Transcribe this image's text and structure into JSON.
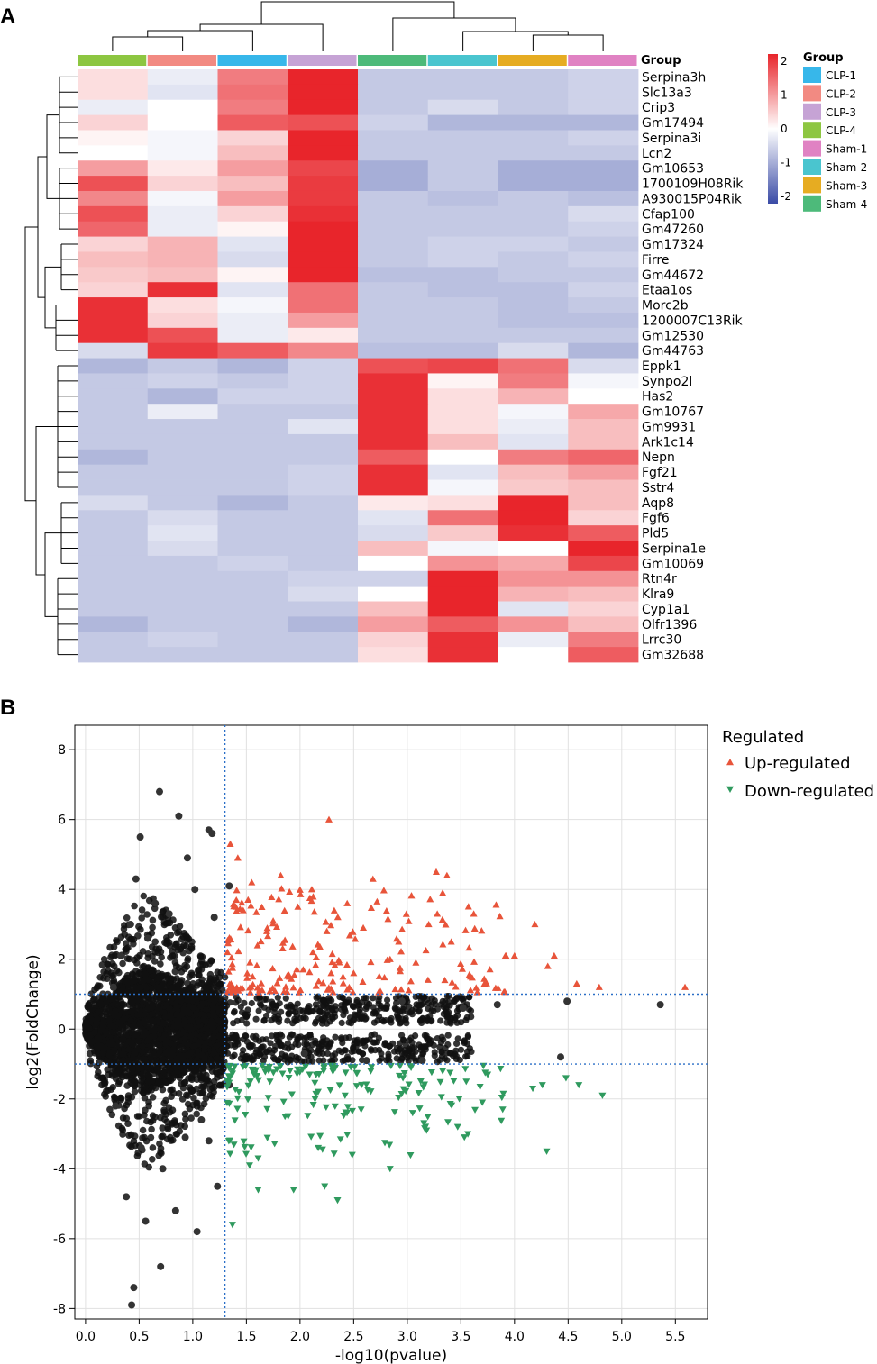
{
  "figure": {
    "panel_a_letter": "A",
    "panel_b_letter": "B"
  },
  "chart_data": [
    {
      "type": "heatmap",
      "group_annotation_label": "Group",
      "columns": [
        "CLP-4",
        "CLP-2",
        "CLP-1",
        "CLP-3",
        "Sham-4",
        "Sham-2",
        "Sham-3",
        "Sham-1"
      ],
      "rows": [
        "Serpina3h",
        "Slc13a3",
        "Crip3",
        "Gm17494",
        "Serpina3i",
        "Lcn2",
        "Gm10653",
        "1700109H08Rik",
        "A930015P04Rik",
        "Cfap100",
        "Gm47260",
        "Gm17324",
        "Firre",
        "Gm44672",
        "Etaa1os",
        "Morc2b",
        "1200007C13Rik",
        "Gm12530",
        "Gm44763",
        "Eppk1",
        "Synpo2l",
        "Has2",
        "Gm10767",
        "Gm9931",
        "Ark1c14",
        "Nepn",
        "Fgf21",
        "Sstr4",
        "Aqp8",
        "Fgf6",
        "Pld5",
        "Serpina1e",
        "Gm10069",
        "Rtn4r",
        "Klra9",
        "Cyp1a1",
        "Olfr1396",
        "Lrrc30",
        "Gm32688"
      ],
      "values": [
        [
          0.3,
          -0.2,
          1.2,
          2.0,
          -0.6,
          -0.6,
          -0.6,
          -0.5
        ],
        [
          0.3,
          -0.3,
          1.3,
          2.0,
          -0.6,
          -0.6,
          -0.6,
          -0.5
        ],
        [
          -0.2,
          0.0,
          1.2,
          2.0,
          -0.6,
          -0.4,
          -0.6,
          -0.5
        ],
        [
          0.4,
          0.0,
          1.5,
          1.6,
          -0.5,
          -0.8,
          -0.8,
          -0.8
        ],
        [
          0.1,
          -0.1,
          0.4,
          2.0,
          -0.6,
          -0.6,
          -0.6,
          -0.5
        ],
        [
          0.0,
          -0.1,
          0.6,
          2.0,
          -0.6,
          -0.6,
          -0.6,
          -0.6
        ],
        [
          0.9,
          0.2,
          0.9,
          1.7,
          -0.9,
          -0.6,
          -0.9,
          -0.9
        ],
        [
          1.6,
          0.4,
          0.6,
          1.8,
          -0.9,
          -0.6,
          -0.9,
          -0.9
        ],
        [
          1.1,
          -0.1,
          0.9,
          1.8,
          -0.6,
          -0.7,
          -0.6,
          -0.7
        ],
        [
          1.6,
          -0.2,
          0.4,
          1.9,
          -0.6,
          -0.6,
          -0.6,
          -0.4
        ],
        [
          1.4,
          -0.2,
          0.1,
          2.0,
          -0.6,
          -0.6,
          -0.6,
          -0.5
        ],
        [
          0.4,
          0.7,
          -0.3,
          2.0,
          -0.6,
          -0.5,
          -0.5,
          -0.6
        ],
        [
          0.6,
          0.7,
          -0.4,
          2.0,
          -0.6,
          -0.5,
          -0.6,
          -0.5
        ],
        [
          0.5,
          0.6,
          0.1,
          2.0,
          -0.7,
          -0.7,
          -0.6,
          -0.6
        ],
        [
          0.4,
          1.9,
          -0.3,
          1.3,
          -0.6,
          -0.7,
          -0.7,
          -0.5
        ],
        [
          1.9,
          0.3,
          -0.1,
          1.3,
          -0.6,
          -0.6,
          -0.7,
          -0.6
        ],
        [
          1.9,
          0.4,
          -0.2,
          0.9,
          -0.6,
          -0.6,
          -0.7,
          -0.7
        ],
        [
          1.9,
          1.6,
          -0.2,
          0.2,
          -0.6,
          -0.6,
          -0.6,
          -0.6
        ],
        [
          -0.4,
          1.8,
          1.5,
          1.1,
          -0.7,
          -0.7,
          -0.4,
          -0.8
        ],
        [
          -0.8,
          -0.6,
          -0.8,
          -0.5,
          1.6,
          1.7,
          1.3,
          -0.4
        ],
        [
          -0.6,
          -0.5,
          -0.6,
          -0.5,
          1.9,
          0.1,
          1.2,
          -0.1
        ],
        [
          -0.6,
          -0.8,
          -0.5,
          -0.5,
          1.9,
          0.3,
          0.7,
          0.0
        ],
        [
          -0.6,
          -0.2,
          -0.6,
          -0.6,
          1.9,
          0.3,
          -0.1,
          0.8
        ],
        [
          -0.6,
          -0.6,
          -0.6,
          -0.3,
          1.9,
          0.3,
          -0.2,
          0.6
        ],
        [
          -0.6,
          -0.6,
          -0.6,
          -0.6,
          1.9,
          0.6,
          -0.3,
          0.6
        ],
        [
          -0.8,
          -0.6,
          -0.6,
          -0.6,
          1.5,
          0.0,
          1.2,
          1.4
        ],
        [
          -0.6,
          -0.6,
          -0.6,
          -0.5,
          1.9,
          -0.3,
          0.6,
          0.9
        ],
        [
          -0.6,
          -0.6,
          -0.6,
          -0.5,
          1.9,
          -0.1,
          0.5,
          0.6
        ],
        [
          -0.4,
          -0.6,
          -0.8,
          -0.6,
          0.2,
          0.3,
          2.0,
          0.6
        ],
        [
          -0.6,
          -0.4,
          -0.6,
          -0.6,
          -0.3,
          1.3,
          2.0,
          0.4
        ],
        [
          -0.6,
          -0.3,
          -0.6,
          -0.6,
          -0.4,
          0.5,
          1.9,
          1.5
        ],
        [
          -0.6,
          -0.4,
          -0.6,
          -0.6,
          0.6,
          -0.1,
          0.0,
          2.0
        ],
        [
          -0.6,
          -0.6,
          -0.5,
          -0.6,
          0.0,
          1.0,
          0.8,
          1.7
        ],
        [
          -0.6,
          -0.6,
          -0.6,
          -0.5,
          -0.5,
          2.0,
          1.0,
          1.0
        ],
        [
          -0.6,
          -0.6,
          -0.6,
          -0.4,
          0.0,
          2.0,
          0.7,
          0.6
        ],
        [
          -0.6,
          -0.6,
          -0.6,
          -0.6,
          0.6,
          2.0,
          -0.3,
          0.4
        ],
        [
          -0.8,
          -0.6,
          -0.6,
          -0.8,
          0.9,
          1.5,
          1.0,
          0.6
        ],
        [
          -0.6,
          -0.5,
          -0.6,
          -0.6,
          0.4,
          1.9,
          -0.2,
          1.2
        ],
        [
          -0.6,
          -0.6,
          -0.6,
          -0.6,
          0.3,
          1.9,
          0.0,
          1.5
        ]
      ],
      "color_scale": {
        "min": -2,
        "max": 2,
        "ticks": [
          "2",
          "1",
          "0",
          "-1",
          "-2"
        ],
        "low_color": "#3a4ba6",
        "mid_color": "#ffffff",
        "high_color": "#e8252b"
      },
      "legend": {
        "title": "Group",
        "entries": [
          {
            "label": "CLP-1",
            "color": "#37b7ea"
          },
          {
            "label": "CLP-2",
            "color": "#f28a82"
          },
          {
            "label": "CLP-3",
            "color": "#c6a3d5"
          },
          {
            "label": "CLP-4",
            "color": "#8dc641"
          },
          {
            "label": "Sham-1",
            "color": "#e082c3"
          },
          {
            "label": "Sham-2",
            "color": "#4ac5cf"
          },
          {
            "label": "Sham-3",
            "color": "#e6ac22"
          },
          {
            "label": "Sham-4",
            "color": "#4dba7a"
          }
        ]
      },
      "column_colors": [
        "#8dc641",
        "#f28a82",
        "#37b7ea",
        "#c6a3d5",
        "#4dba7a",
        "#4ac5cf",
        "#e6ac22",
        "#e082c3"
      ],
      "dendrogram": "hierarchical clustering of rows and columns"
    },
    {
      "type": "scatter",
      "title": "",
      "xlabel": "-log10(pvalue)",
      "ylabel": "log2(FoldChange)",
      "xlim": [
        -0.1,
        5.8
      ],
      "ylim": [
        -8.3,
        8.7
      ],
      "xticks": [
        "0.0",
        "0.5",
        "1.0",
        "1.5",
        "2.0",
        "2.5",
        "3.0",
        "3.5",
        "4.0",
        "4.5",
        "5.0",
        "5.5"
      ],
      "yticks": [
        "8",
        "6",
        "4",
        "2",
        "0",
        "-2",
        "-4",
        "-6",
        "-8"
      ],
      "grid": true,
      "thresholds": {
        "x": 1.3,
        "y_up": 1,
        "y_down": -1
      },
      "legend_title": "Regulated",
      "legend_position": "right",
      "series": [
        {
          "name": "Up-regulated",
          "color": "#e8543a",
          "marker": "triangle-up",
          "points": [
            [
              2.27,
              6.0
            ],
            [
              1.35,
              5.3
            ],
            [
              1.42,
              4.9
            ],
            [
              1.82,
              4.4
            ],
            [
              3.27,
              4.5
            ],
            [
              3.37,
              4.4
            ],
            [
              2.68,
              4.3
            ],
            [
              1.55,
              4.2
            ],
            [
              2.11,
              4.0
            ],
            [
              3.33,
              3.9
            ],
            [
              1.98,
              3.5
            ],
            [
              2.44,
              3.6
            ],
            [
              3.62,
              3.3
            ],
            [
              3.28,
              3.3
            ],
            [
              3.2,
              3.0
            ],
            [
              4.19,
              3.0
            ],
            [
              2.59,
              2.9
            ],
            [
              1.69,
              2.8
            ],
            [
              2.92,
              2.5
            ],
            [
              3.41,
              2.5
            ],
            [
              3.92,
              2.1
            ],
            [
              4.0,
              2.1
            ],
            [
              2.12,
              2.2
            ],
            [
              4.37,
              2.1
            ],
            [
              2.5,
              1.6
            ],
            [
              3.59,
              1.5
            ],
            [
              4.31,
              1.8
            ],
            [
              4.58,
              1.3
            ],
            [
              4.79,
              1.2
            ],
            [
              5.59,
              1.2
            ],
            [
              1.47,
              3.4
            ],
            [
              1.75,
              3.1
            ],
            [
              2.25,
              2.8
            ],
            [
              2.84,
              2.0
            ],
            [
              3.08,
              1.9
            ],
            [
              3.35,
              1.4
            ],
            [
              3.72,
              1.3
            ]
          ]
        },
        {
          "name": "Down-regulated",
          "color": "#2f9a5e",
          "marker": "triangle-down",
          "points": [
            [
              1.37,
              -5.6
            ],
            [
              2.35,
              -4.9
            ],
            [
              1.61,
              -4.6
            ],
            [
              1.94,
              -4.6
            ],
            [
              2.23,
              -4.5
            ],
            [
              2.84,
              -4.0
            ],
            [
              4.3,
              -3.5
            ],
            [
              1.53,
              -3.9
            ],
            [
              1.61,
              -3.7
            ],
            [
              2.17,
              -3.4
            ],
            [
              3.18,
              -2.9
            ],
            [
              3.47,
              -2.8
            ],
            [
              3.89,
              -2.3
            ],
            [
              3.7,
              -2.1
            ],
            [
              4.17,
              -1.7
            ],
            [
              4.26,
              -1.6
            ],
            [
              4.6,
              -1.6
            ],
            [
              4.82,
              -1.9
            ],
            [
              4.48,
              -1.4
            ],
            [
              2.57,
              -2.3
            ],
            [
              1.86,
              -2.5
            ],
            [
              2.14,
              -2.0
            ],
            [
              2.42,
              -1.9
            ],
            [
              2.96,
              -1.4
            ],
            [
              3.33,
              -1.2
            ],
            [
              3.55,
              -1.5
            ],
            [
              1.72,
              -1.5
            ],
            [
              2.09,
              -1.3
            ],
            [
              2.66,
              -1.2
            ],
            [
              3.05,
              -2.4
            ],
            [
              3.75,
              -1.3
            ],
            [
              1.43,
              -1.8
            ]
          ]
        },
        {
          "name": "",
          "color": "#000000",
          "marker": "circle",
          "points": [
            [
              0.69,
              6.8
            ],
            [
              0.87,
              6.1
            ],
            [
              0.51,
              5.5
            ],
            [
              1.15,
              5.7
            ],
            [
              1.18,
              5.6
            ],
            [
              0.95,
              4.9
            ],
            [
              1.34,
              4.1
            ],
            [
              1.02,
              4.0
            ],
            [
              0.65,
              3.6
            ],
            [
              0.78,
              3.3
            ],
            [
              0.42,
              3.0
            ],
            [
              0.58,
              2.6
            ],
            [
              1.2,
              3.2
            ],
            [
              0.33,
              2.1
            ],
            [
              0.26,
              1.2
            ],
            [
              0.47,
              4.3
            ],
            [
              2.95,
              0.8
            ],
            [
              3.52,
              0.6
            ],
            [
              3.84,
              0.7
            ],
            [
              4.49,
              0.8
            ],
            [
              5.36,
              0.7
            ],
            [
              4.43,
              -0.8
            ],
            [
              3.14,
              -0.9
            ],
            [
              2.62,
              -0.9
            ],
            [
              2.04,
              -0.7
            ],
            [
              0.43,
              -7.9
            ],
            [
              0.7,
              -6.8
            ],
            [
              0.45,
              -7.4
            ],
            [
              1.04,
              -5.8
            ],
            [
              0.56,
              -5.5
            ],
            [
              0.84,
              -5.2
            ],
            [
              1.23,
              -4.5
            ],
            [
              0.72,
              -4.0
            ],
            [
              0.38,
              -4.8
            ],
            [
              1.15,
              -3.2
            ],
            [
              0.93,
              -3.1
            ],
            [
              0.52,
              -3.4
            ],
            [
              1.34,
              -1.6
            ],
            [
              0.28,
              -2.2
            ],
            [
              1.08,
              -2.6
            ]
          ]
        }
      ]
    }
  ]
}
